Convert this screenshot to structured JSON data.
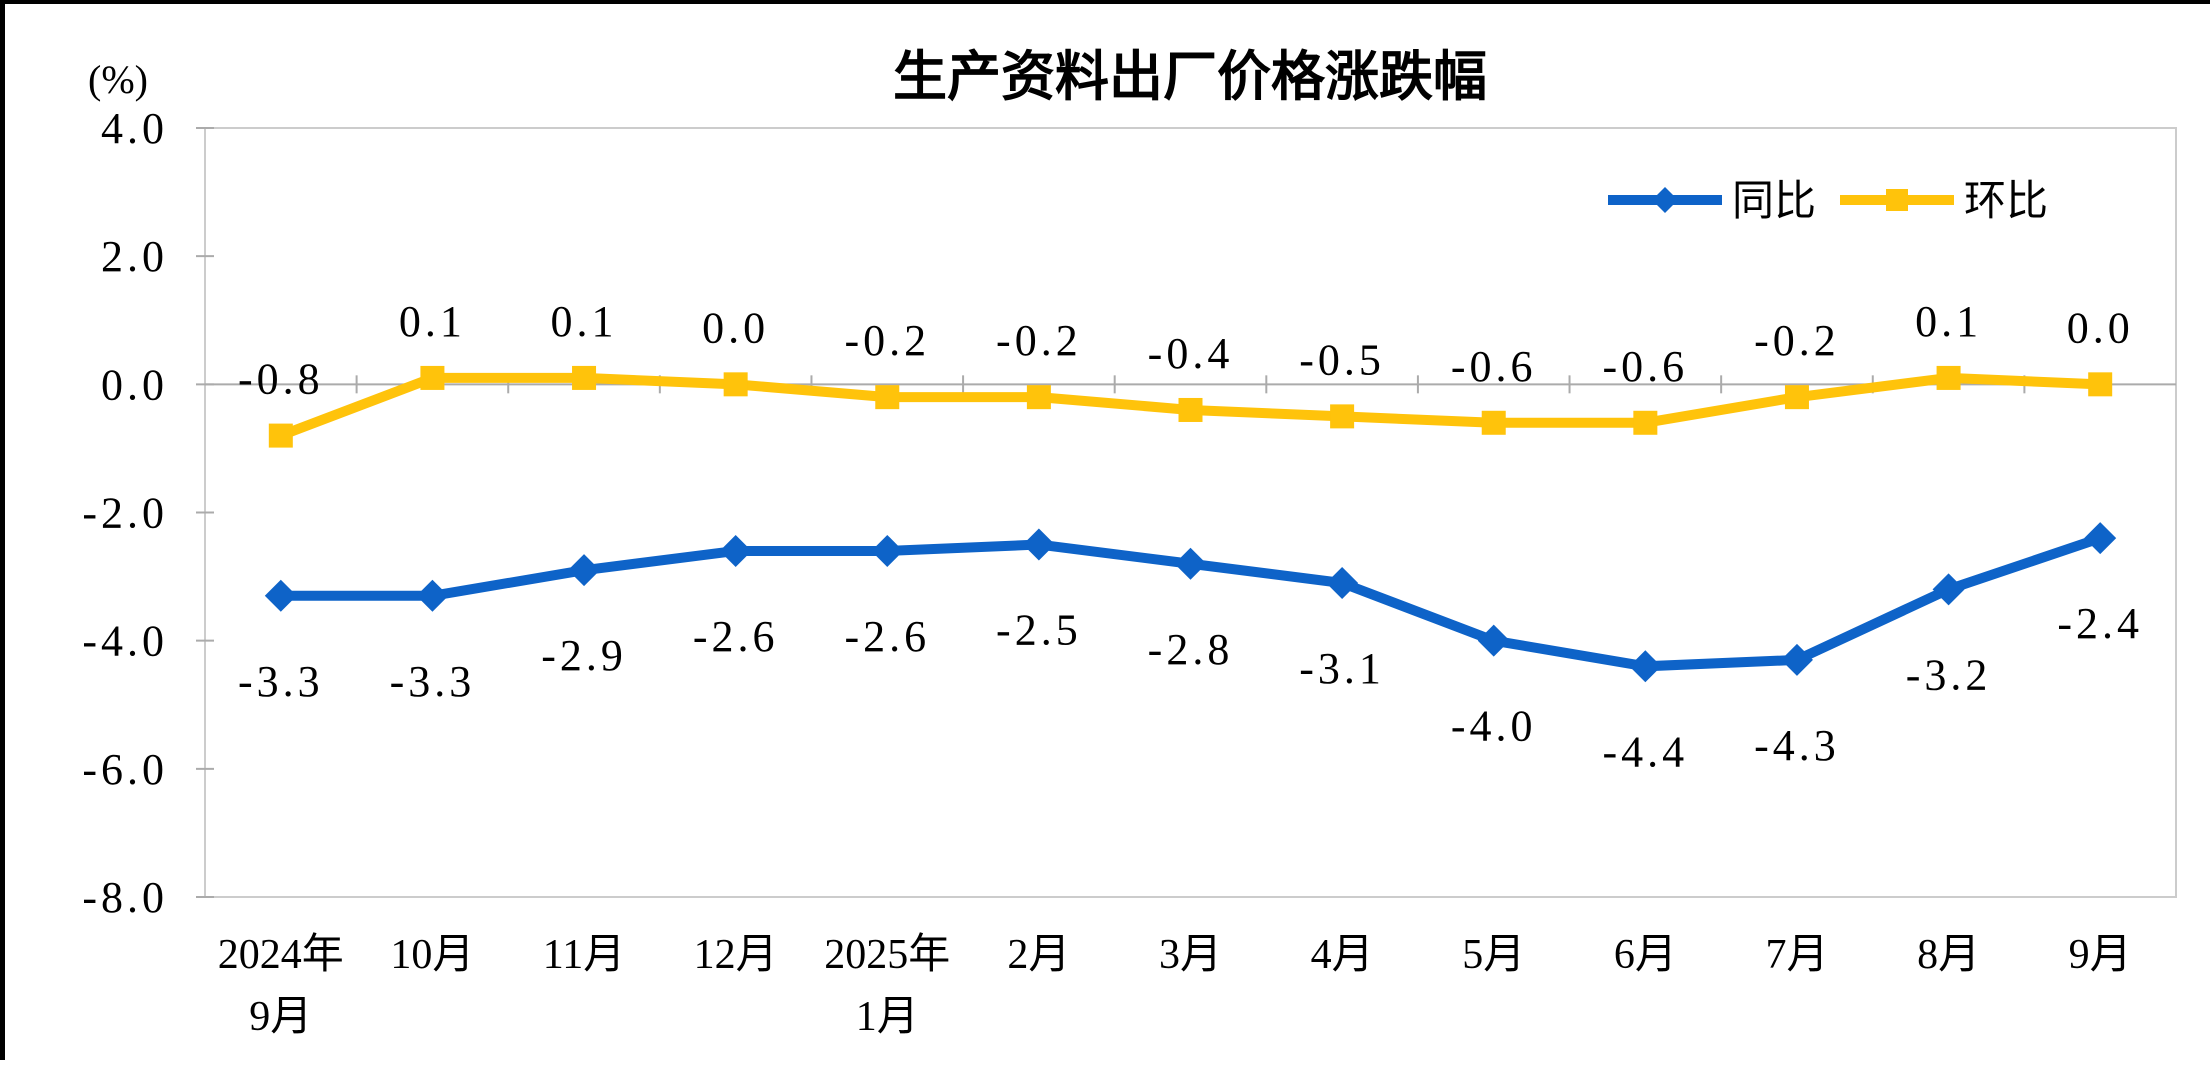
{
  "page": {
    "background": "#FFFFFF",
    "frame_color": "#000000"
  },
  "colors": {
    "axis_line": "#ABABAB",
    "plot_border": "#CCCCCC",
    "text": "#000000"
  },
  "chart_data": {
    "type": "line",
    "title": "生产资料出厂价格涨跌幅",
    "unit_label": "(%)",
    "legend_position": "top-right",
    "gridlines": false,
    "categories": [
      [
        "2024年",
        "9月"
      ],
      [
        "10月"
      ],
      [
        "11月"
      ],
      [
        "12月"
      ],
      [
        "2025年",
        "1月"
      ],
      [
        "2月"
      ],
      [
        "3月"
      ],
      [
        "4月"
      ],
      [
        "5月"
      ],
      [
        "6月"
      ],
      [
        "7月"
      ],
      [
        "8月"
      ],
      [
        "9月"
      ]
    ],
    "y_axis": {
      "min": -8.0,
      "max": 4.0,
      "step": 2.0,
      "tick_labels": [
        "4.0",
        "2.0",
        "0.0",
        "-2.0",
        "-4.0",
        "-6.0",
        "-8.0"
      ]
    },
    "series": [
      {
        "name": "同比",
        "color": "#0E63C8",
        "marker": "diamond",
        "label_position": "below",
        "values": [
          -3.3,
          -3.3,
          -2.9,
          -2.6,
          -2.6,
          -2.5,
          -2.8,
          -3.1,
          -4.0,
          -4.4,
          -4.3,
          -3.2,
          -2.4
        ],
        "labels": [
          "-3.3",
          "-3.3",
          "-2.9",
          "-2.6",
          "-2.6",
          "-2.5",
          "-2.8",
          "-3.1",
          "-4.0",
          "-4.4",
          "-4.3",
          "-3.2",
          "-2.4"
        ]
      },
      {
        "name": "环比",
        "color": "#FFC30B",
        "marker": "square",
        "label_position": "above",
        "values": [
          -0.8,
          0.1,
          0.1,
          0.0,
          -0.2,
          -0.2,
          -0.4,
          -0.5,
          -0.6,
          -0.6,
          -0.2,
          0.1,
          0.0
        ],
        "labels": [
          "-0.8",
          "0.1",
          "0.1",
          "0.0",
          "-0.2",
          "-0.2",
          "-0.4",
          "-0.5",
          "-0.6",
          "-0.6",
          "-0.2",
          "0.1",
          "0.0"
        ]
      }
    ]
  }
}
